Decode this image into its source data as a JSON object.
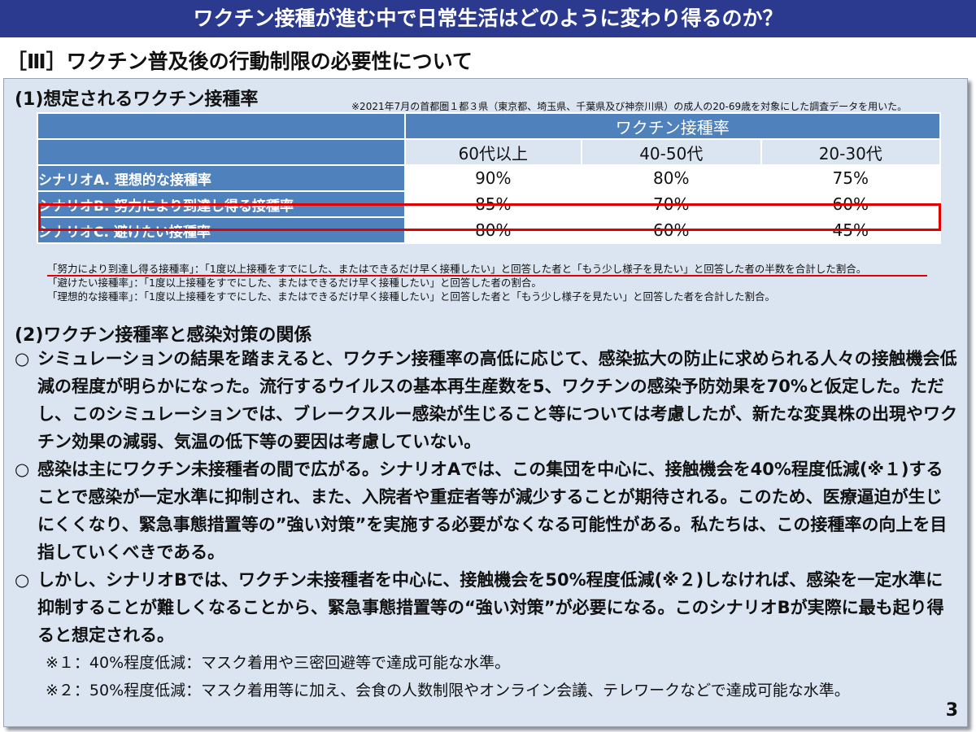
{
  "header": {
    "title": "ワクチン接種が進む中で日常生活はどのように変わり得るのか？"
  },
  "section": {
    "title": "［Ⅲ］ワクチン普及後の行動制限の必要性について"
  },
  "part1": {
    "heading": "(1)想定されるワクチン接種率",
    "source_note": "※2021年7月の首都圏１都３県（東京都、埼玉県、千葉県及び神奈川県）の成人の20-69歳を対象にした調査データを用いた。",
    "table": {
      "group_header": "ワクチン接種率",
      "columns": [
        "60代以上",
        "40-50代",
        "20-30代"
      ],
      "rows": [
        {
          "label": "シナリオA. 理想的な接種率",
          "values": [
            "90%",
            "80%",
            "75%"
          ]
        },
        {
          "label": "シナリオB. 努力により到達し得る接種率",
          "values": [
            "85%",
            "70%",
            "60%"
          ]
        },
        {
          "label": "シナリオC. 避けたい接種率",
          "values": [
            "80%",
            "60%",
            "45%"
          ]
        }
      ]
    },
    "notes": [
      "「努力により到達し得る接種率」：「1度以上接種をすでにした、またはできるだけ早く接種したい」と回答した者と「もう少し様子を見たい」と回答した者の半数を合計した割合。",
      "「避けたい接種率」：「1度以上接種をすでにした、またはできるだけ早く接種したい」と回答した者の割合。",
      "「理想的な接種率」：「1度以上接種をすでにした、またはできるだけ早く接種したい」と回答した者と「もう少し様子を見たい」と回答した者を合計した割合。"
    ]
  },
  "part2": {
    "heading": "(2)ワクチン接種率と感染対策の関係",
    "bullet_marker": "○",
    "bullets": [
      "シミュレーションの結果を踏まえると、ワクチン接種率の高低に応じて、感染拡大の防止に求められる人々の接触機会低減の程度が明らかになった。流行するウイルスの基本再生産数を5、ワクチンの感染予防効果を70%と仮定した。ただし、このシミュレーションでは、ブレークスルー感染が生じること等については考慮したが、新たな変異株の出現やワクチン効果の減弱、気温の低下等の要因は考慮していない。",
      "感染は主にワクチン未接種者の間で広がる。シナリオAでは、この集団を中心に、接触機会を40%程度低減(※１)することで感染が一定水準に抑制され、また、入院者や重症者等が減少することが期待される。このため、医療逼迫が生じにくくなり、緊急事態措置等の”強い対策”を実施する必要がなくなる可能性がある。私たちは、この接種率の向上を目指していくべきである。",
      "しかし、シナリオBでは、ワクチン未接種者を中心に、接触機会を50%程度低減(※２)しなければ、感染を一定水準に抑制することが難しくなることから、緊急事態措置等の“強い対策”が必要になる。このシナリオBが実際に最も起り得ると想定される。"
    ],
    "footnotes": [
      "※１：40%程度低減：マスク着用や三密回避等で達成可能な水準。",
      "※２：50%程度低減：マスク着用等に加え、会食の人数制限やオンライン会議、テレワークなどで達成可能な水準。"
    ]
  },
  "page_number": "3",
  "colors": {
    "banner": "#2b3a8f",
    "panel": "#dbe5f1",
    "table_header": "#4f81bd",
    "highlight": "#e00000"
  }
}
